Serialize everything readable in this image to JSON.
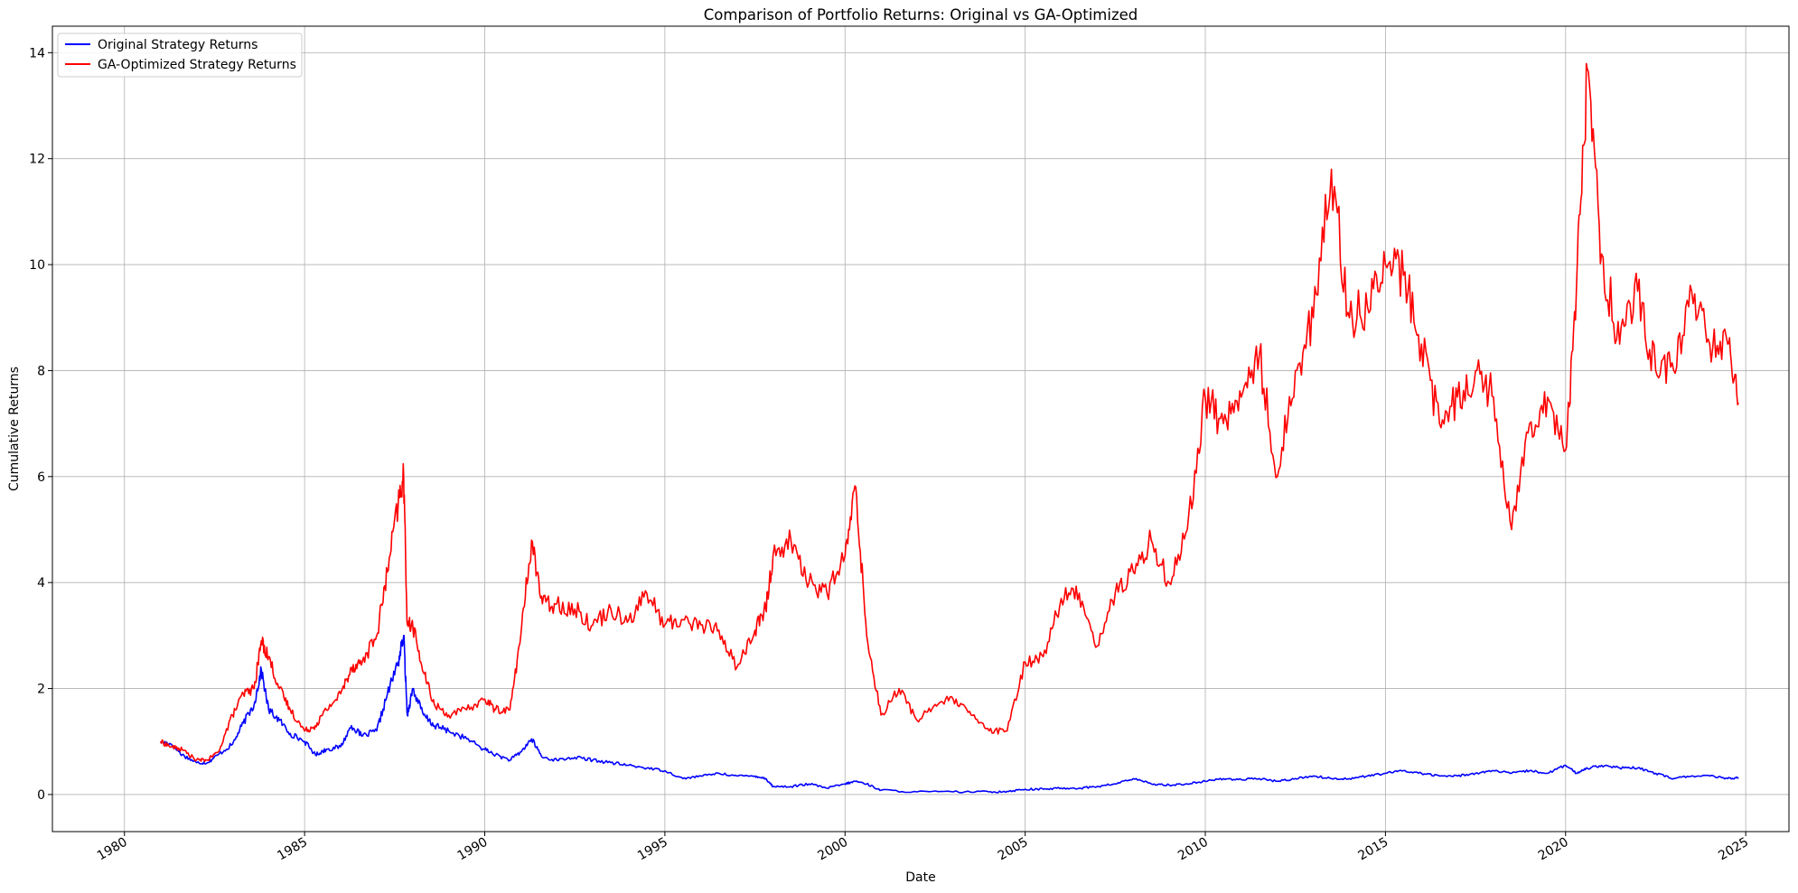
{
  "chart_data": {
    "type": "line",
    "title": "Comparison of Portfolio Returns: Original vs GA-Optimized",
    "xlabel": "Date",
    "ylabel": "Cumulative Returns",
    "xlim": [
      1978.0,
      2026.2
    ],
    "ylim": [
      -0.7,
      14.5
    ],
    "x_ticks": [
      1980,
      1985,
      1990,
      1995,
      2000,
      2005,
      2010,
      2015,
      2020,
      2025
    ],
    "x_tick_labels": [
      "1980",
      "1985",
      "1990",
      "1995",
      "2000",
      "2005",
      "2010",
      "2015",
      "2020",
      "2025"
    ],
    "y_ticks": [
      0,
      2,
      4,
      6,
      8,
      10,
      12,
      14
    ],
    "y_tick_labels": [
      "0",
      "2",
      "4",
      "6",
      "8",
      "10",
      "12",
      "14"
    ],
    "grid": true,
    "legend_position": "top-left",
    "series": [
      {
        "name": "Original Strategy Returns",
        "color": "#0000ff",
        "x": [
          1981.0,
          1981.3,
          1981.6,
          1982.0,
          1982.3,
          1982.6,
          1983.0,
          1983.3,
          1983.6,
          1983.8,
          1984.0,
          1984.3,
          1984.6,
          1985.0,
          1985.3,
          1985.6,
          1986.0,
          1986.3,
          1986.6,
          1987.0,
          1987.3,
          1987.6,
          1987.75,
          1987.85,
          1988.0,
          1988.3,
          1988.6,
          1989.0,
          1989.5,
          1990.0,
          1990.3,
          1990.7,
          1991.0,
          1991.3,
          1991.6,
          1992.0,
          1992.5,
          1993.0,
          1993.5,
          1994.0,
          1994.5,
          1995.0,
          1995.5,
          1996.0,
          1996.5,
          1997.0,
          1997.5,
          1997.8,
          1998.0,
          1998.5,
          1999.0,
          1999.5,
          2000.0,
          2000.3,
          2000.6,
          2001.0,
          2002.0,
          2003.0,
          2004.0,
          2004.5,
          2005.0,
          2005.5,
          2006.0,
          2006.5,
          2007.0,
          2007.5,
          2008.0,
          2008.5,
          2009.0,
          2009.5,
          2010.0,
          2010.5,
          2011.0,
          2011.5,
          2012.0,
          2012.5,
          2013.0,
          2013.5,
          2014.0,
          2014.5,
          2015.0,
          2015.5,
          2016.0,
          2016.5,
          2017.0,
          2017.5,
          2018.0,
          2018.5,
          2019.0,
          2019.5,
          2020.0,
          2020.3,
          2020.6,
          2021.0,
          2021.5,
          2022.0,
          2022.5,
          2023.0,
          2023.5,
          2024.0,
          2024.5,
          2024.8
        ],
        "y": [
          1.0,
          0.95,
          0.75,
          0.6,
          0.6,
          0.75,
          0.95,
          1.35,
          1.7,
          2.35,
          1.6,
          1.4,
          1.15,
          1.0,
          0.75,
          0.85,
          0.9,
          1.3,
          1.1,
          1.2,
          1.9,
          2.5,
          3.0,
          1.5,
          2.0,
          1.5,
          1.3,
          1.2,
          1.05,
          0.85,
          0.75,
          0.65,
          0.8,
          1.05,
          0.7,
          0.65,
          0.7,
          0.65,
          0.6,
          0.55,
          0.5,
          0.45,
          0.3,
          0.35,
          0.4,
          0.35,
          0.35,
          0.3,
          0.15,
          0.15,
          0.2,
          0.12,
          0.2,
          0.25,
          0.2,
          0.08,
          0.05,
          0.05,
          0.05,
          0.06,
          0.1,
          0.1,
          0.12,
          0.12,
          0.15,
          0.2,
          0.3,
          0.2,
          0.18,
          0.2,
          0.25,
          0.3,
          0.28,
          0.3,
          0.25,
          0.3,
          0.35,
          0.3,
          0.3,
          0.35,
          0.4,
          0.45,
          0.4,
          0.35,
          0.35,
          0.4,
          0.45,
          0.4,
          0.45,
          0.4,
          0.55,
          0.4,
          0.5,
          0.55,
          0.5,
          0.5,
          0.4,
          0.3,
          0.35,
          0.35,
          0.3,
          0.32
        ]
      },
      {
        "name": "GA-Optimized Strategy Returns",
        "color": "#ff0000",
        "x": [
          1981.0,
          1981.3,
          1981.6,
          1982.0,
          1982.3,
          1982.6,
          1983.0,
          1983.3,
          1983.6,
          1983.8,
          1984.0,
          1984.3,
          1984.6,
          1985.0,
          1985.3,
          1985.6,
          1986.0,
          1986.3,
          1986.6,
          1987.0,
          1987.3,
          1987.6,
          1987.75,
          1987.85,
          1988.0,
          1988.3,
          1988.6,
          1989.0,
          1989.5,
          1990.0,
          1990.3,
          1990.7,
          1991.0,
          1991.3,
          1991.6,
          1992.0,
          1992.5,
          1993.0,
          1993.5,
          1994.0,
          1994.5,
          1995.0,
          1995.5,
          1996.0,
          1996.5,
          1997.0,
          1997.5,
          1997.8,
          1998.0,
          1998.5,
          1999.0,
          1999.5,
          2000.0,
          2000.3,
          2000.6,
          2001.0,
          2001.5,
          2002.0,
          2002.5,
          2003.0,
          2003.5,
          2004.0,
          2004.5,
          2005.0,
          2005.5,
          2006.0,
          2006.5,
          2007.0,
          2007.5,
          2008.0,
          2008.5,
          2009.0,
          2009.5,
          2010.0,
          2010.5,
          2011.0,
          2011.5,
          2012.0,
          2012.5,
          2013.0,
          2013.5,
          2014.0,
          2014.5,
          2015.0,
          2015.5,
          2016.0,
          2016.5,
          2017.0,
          2017.5,
          2018.0,
          2018.5,
          2019.0,
          2019.5,
          2020.0,
          2020.3,
          2020.6,
          2021.0,
          2021.5,
          2022.0,
          2022.5,
          2023.0,
          2023.5,
          2024.0,
          2024.5,
          2024.8
        ],
        "y": [
          1.0,
          0.9,
          0.85,
          0.65,
          0.65,
          0.8,
          1.5,
          1.9,
          2.0,
          2.9,
          2.6,
          2.0,
          1.6,
          1.2,
          1.3,
          1.6,
          1.9,
          2.4,
          2.5,
          3.0,
          4.2,
          5.5,
          6.0,
          3.2,
          3.2,
          2.3,
          1.7,
          1.5,
          1.6,
          1.8,
          1.6,
          1.6,
          3.0,
          4.8,
          3.6,
          3.6,
          3.5,
          3.2,
          3.5,
          3.3,
          3.8,
          3.2,
          3.3,
          3.2,
          3.1,
          2.4,
          3.1,
          3.5,
          4.5,
          4.8,
          4.0,
          3.8,
          4.5,
          5.8,
          3.0,
          1.5,
          2.0,
          1.4,
          1.7,
          1.8,
          1.5,
          1.2,
          1.2,
          2.5,
          2.6,
          3.7,
          3.8,
          2.8,
          3.8,
          4.2,
          4.8,
          4.0,
          5.0,
          7.5,
          7.0,
          7.5,
          8.3,
          6.0,
          8.0,
          9.0,
          11.8,
          9.0,
          9.2,
          10.0,
          9.8,
          8.5,
          7.0,
          7.5,
          8.0,
          7.5,
          5.0,
          7.0,
          7.5,
          6.5,
          9.5,
          13.7,
          10.2,
          8.5,
          9.5,
          8.0,
          8.0,
          9.5,
          8.5,
          8.5,
          7.4
        ]
      }
    ]
  }
}
